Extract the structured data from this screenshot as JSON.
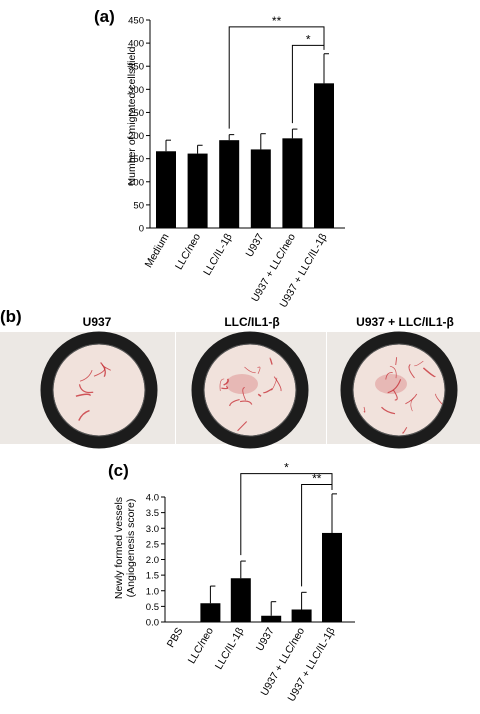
{
  "panel_labels": {
    "a": "(a)",
    "b": "(b)",
    "c": "(c)"
  },
  "photos": {
    "titles": [
      "U937",
      "LLC/IL1-β",
      "U937 + LLC/IL1-β"
    ],
    "colors": {
      "tissue": "#f1e2dc",
      "vessel": "#c4262e",
      "ring": "#1c1c1c",
      "background": "#ece8e4"
    }
  },
  "chart_data": [
    {
      "id": "a",
      "type": "bar",
      "title": "",
      "xlabel": "",
      "ylabel": "Number of migrated cells/field",
      "categories": [
        "Medium",
        "LLC/neo",
        "LLC/IL-1β",
        "U937",
        "U937 + LLC/neo",
        "U937 + LLC/IL-1β"
      ],
      "values": [
        166,
        161,
        190,
        170,
        194,
        313
      ],
      "errors": [
        24,
        18,
        12,
        34,
        20,
        64
      ],
      "ylim": [
        0,
        450
      ],
      "yticks": [
        0,
        50,
        100,
        150,
        200,
        250,
        300,
        350,
        400,
        450
      ],
      "ytick_labels": [
        "0",
        "50",
        "100",
        "150",
        "200",
        "250",
        "300",
        "350",
        "400",
        "450"
      ],
      "bar_color": "#000000",
      "significance": [
        {
          "from": 2,
          "to": 5,
          "label": "**",
          "level": 435
        },
        {
          "from": 4,
          "to": 5,
          "label": "*",
          "level": 395
        }
      ]
    },
    {
      "id": "c",
      "type": "bar",
      "title": "",
      "xlabel": "",
      "ylabel": "Newly formed vessels",
      "ylabel2": "(Angiogenesis score)",
      "categories": [
        "PBS",
        "LLC/neo",
        "LLC/IL-1β",
        "U937",
        "U937 + LLC/neo",
        "U937 + LLC/IL-1β"
      ],
      "values": [
        0,
        0.6,
        1.4,
        0.2,
        0.4,
        2.85
      ],
      "errors": [
        0,
        0.55,
        0.55,
        0.45,
        0.55,
        1.25
      ],
      "ylim": [
        0,
        4.0
      ],
      "yticks": [
        0,
        0.5,
        1.0,
        1.5,
        2.0,
        2.5,
        3.0,
        3.5,
        4.0
      ],
      "ytick_labels": [
        "0.0",
        "0.5",
        "1.0",
        "1.5",
        "2.0",
        "2.5",
        "3.0",
        "3.5",
        "4.0"
      ],
      "bar_color": "#000000",
      "significance": [
        {
          "from": 2,
          "to": 5,
          "label": "*",
          "level": 4.75
        },
        {
          "from": 4,
          "to": 5,
          "label": "**",
          "level": 4.4
        }
      ]
    }
  ]
}
